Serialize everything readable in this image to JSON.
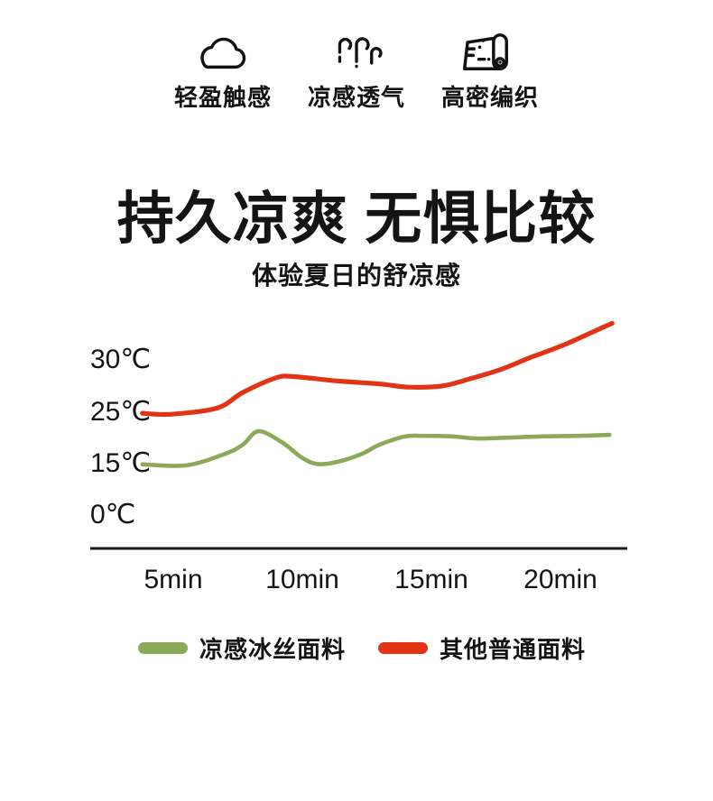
{
  "header": {
    "features": [
      {
        "icon": "cloud-icon",
        "label": "轻盈触感"
      },
      {
        "icon": "steam-icon",
        "label": "凉感透气"
      },
      {
        "icon": "fabric-roll-icon",
        "label": "高密编织"
      }
    ]
  },
  "chart_data": {
    "type": "line",
    "title": "持久凉爽 无惧比较",
    "subtitle": "体验夏日的舒凉感",
    "xlabel": "",
    "ylabel": "",
    "x_unit": "min",
    "y_unit": "℃",
    "x_tick_labels": [
      "5min",
      "10min",
      "15min",
      "20min"
    ],
    "x_tick_values": [
      5,
      10,
      15,
      20
    ],
    "y_tick_labels": [
      "30℃",
      "25℃",
      "15℃",
      "0℃"
    ],
    "y_tick_values": [
      30,
      25,
      15,
      0
    ],
    "y_axis_style": "non-linear: tick values 0,15,25,30 drawn at equal visual spacing",
    "x_range": [
      3.8,
      22
    ],
    "grid": false,
    "legend_position": "bottom",
    "series": [
      {
        "name": "凉感冰丝面料",
        "color": "#8ca95a",
        "points": [
          [
            3.8,
            14.8
          ],
          [
            5.5,
            14.5
          ],
          [
            7,
            16.9
          ],
          [
            7.7,
            18.7
          ],
          [
            8.3,
            21.3
          ],
          [
            9.2,
            19.2
          ],
          [
            10,
            16.1
          ],
          [
            10.6,
            14.9
          ],
          [
            11.4,
            15.4
          ],
          [
            12.3,
            16.9
          ],
          [
            13,
            18.7
          ],
          [
            14,
            20.3
          ],
          [
            14.7,
            20.4
          ],
          [
            15.8,
            20.3
          ],
          [
            16.8,
            19.9
          ],
          [
            18.2,
            20.1
          ],
          [
            19.3,
            20.3
          ],
          [
            20.7,
            20.4
          ],
          [
            21.9,
            20.6
          ]
        ]
      },
      {
        "name": "其他普通面料",
        "color": "#e23415",
        "points": [
          [
            3.8,
            24.8
          ],
          [
            4.9,
            24.6
          ],
          [
            6.7,
            25.4
          ],
          [
            7.7,
            26.9
          ],
          [
            9,
            28.3
          ],
          [
            9.7,
            28.4
          ],
          [
            11.3,
            28
          ],
          [
            13,
            27.7
          ],
          [
            14.1,
            27.4
          ],
          [
            15.4,
            27.5
          ],
          [
            16.5,
            28.2
          ],
          [
            17.7,
            29.1
          ],
          [
            18.8,
            30.2
          ],
          [
            20,
            31.3
          ],
          [
            21.1,
            32.5
          ],
          [
            22,
            33.5
          ]
        ]
      }
    ]
  },
  "colors": {
    "background": "#ffffff",
    "text": "#141414",
    "axis": "#1c1c1c",
    "cool_fabric_green": "#8ca95a",
    "ordinary_fabric_red": "#e23415"
  }
}
